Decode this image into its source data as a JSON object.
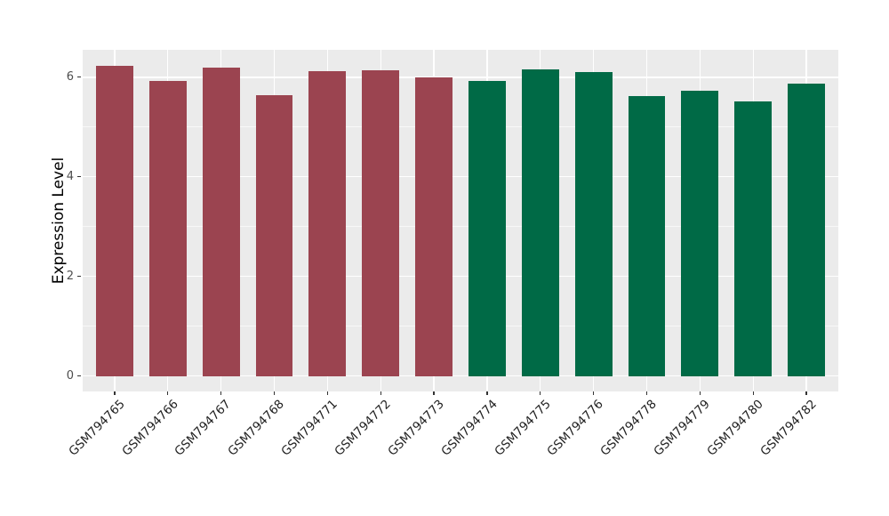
{
  "chart_data": {
    "type": "bar",
    "title": "",
    "xlabel": "",
    "ylabel": "Expression Level",
    "categories": [
      "GSM794765",
      "GSM794766",
      "GSM794767",
      "GSM794768",
      "GSM794771",
      "GSM794772",
      "GSM794773",
      "GSM794774",
      "GSM794775",
      "GSM794776",
      "GSM794778",
      "GSM794779",
      "GSM794780",
      "GSM794782"
    ],
    "values": [
      6.23,
      5.93,
      6.2,
      5.63,
      6.12,
      6.14,
      6.0,
      5.92,
      6.15,
      6.11,
      5.62,
      5.73,
      5.52,
      5.88
    ],
    "groups": [
      "red",
      "red",
      "red",
      "red",
      "red",
      "red",
      "red",
      "green",
      "green",
      "green",
      "green",
      "green",
      "green",
      "green"
    ],
    "group_colors": {
      "red": "#9B4450",
      "green": "#006A46"
    },
    "y_major_ticks": [
      0,
      2,
      4,
      6
    ],
    "y_minor_ticks": [
      1,
      3,
      5
    ],
    "ylim": [
      -0.31,
      6.55
    ],
    "legend": "none",
    "grid": "on",
    "panel_background": "#EBEBEB",
    "gridline_color": "#FFFFFF",
    "bar_width_fraction": 0.7
  }
}
